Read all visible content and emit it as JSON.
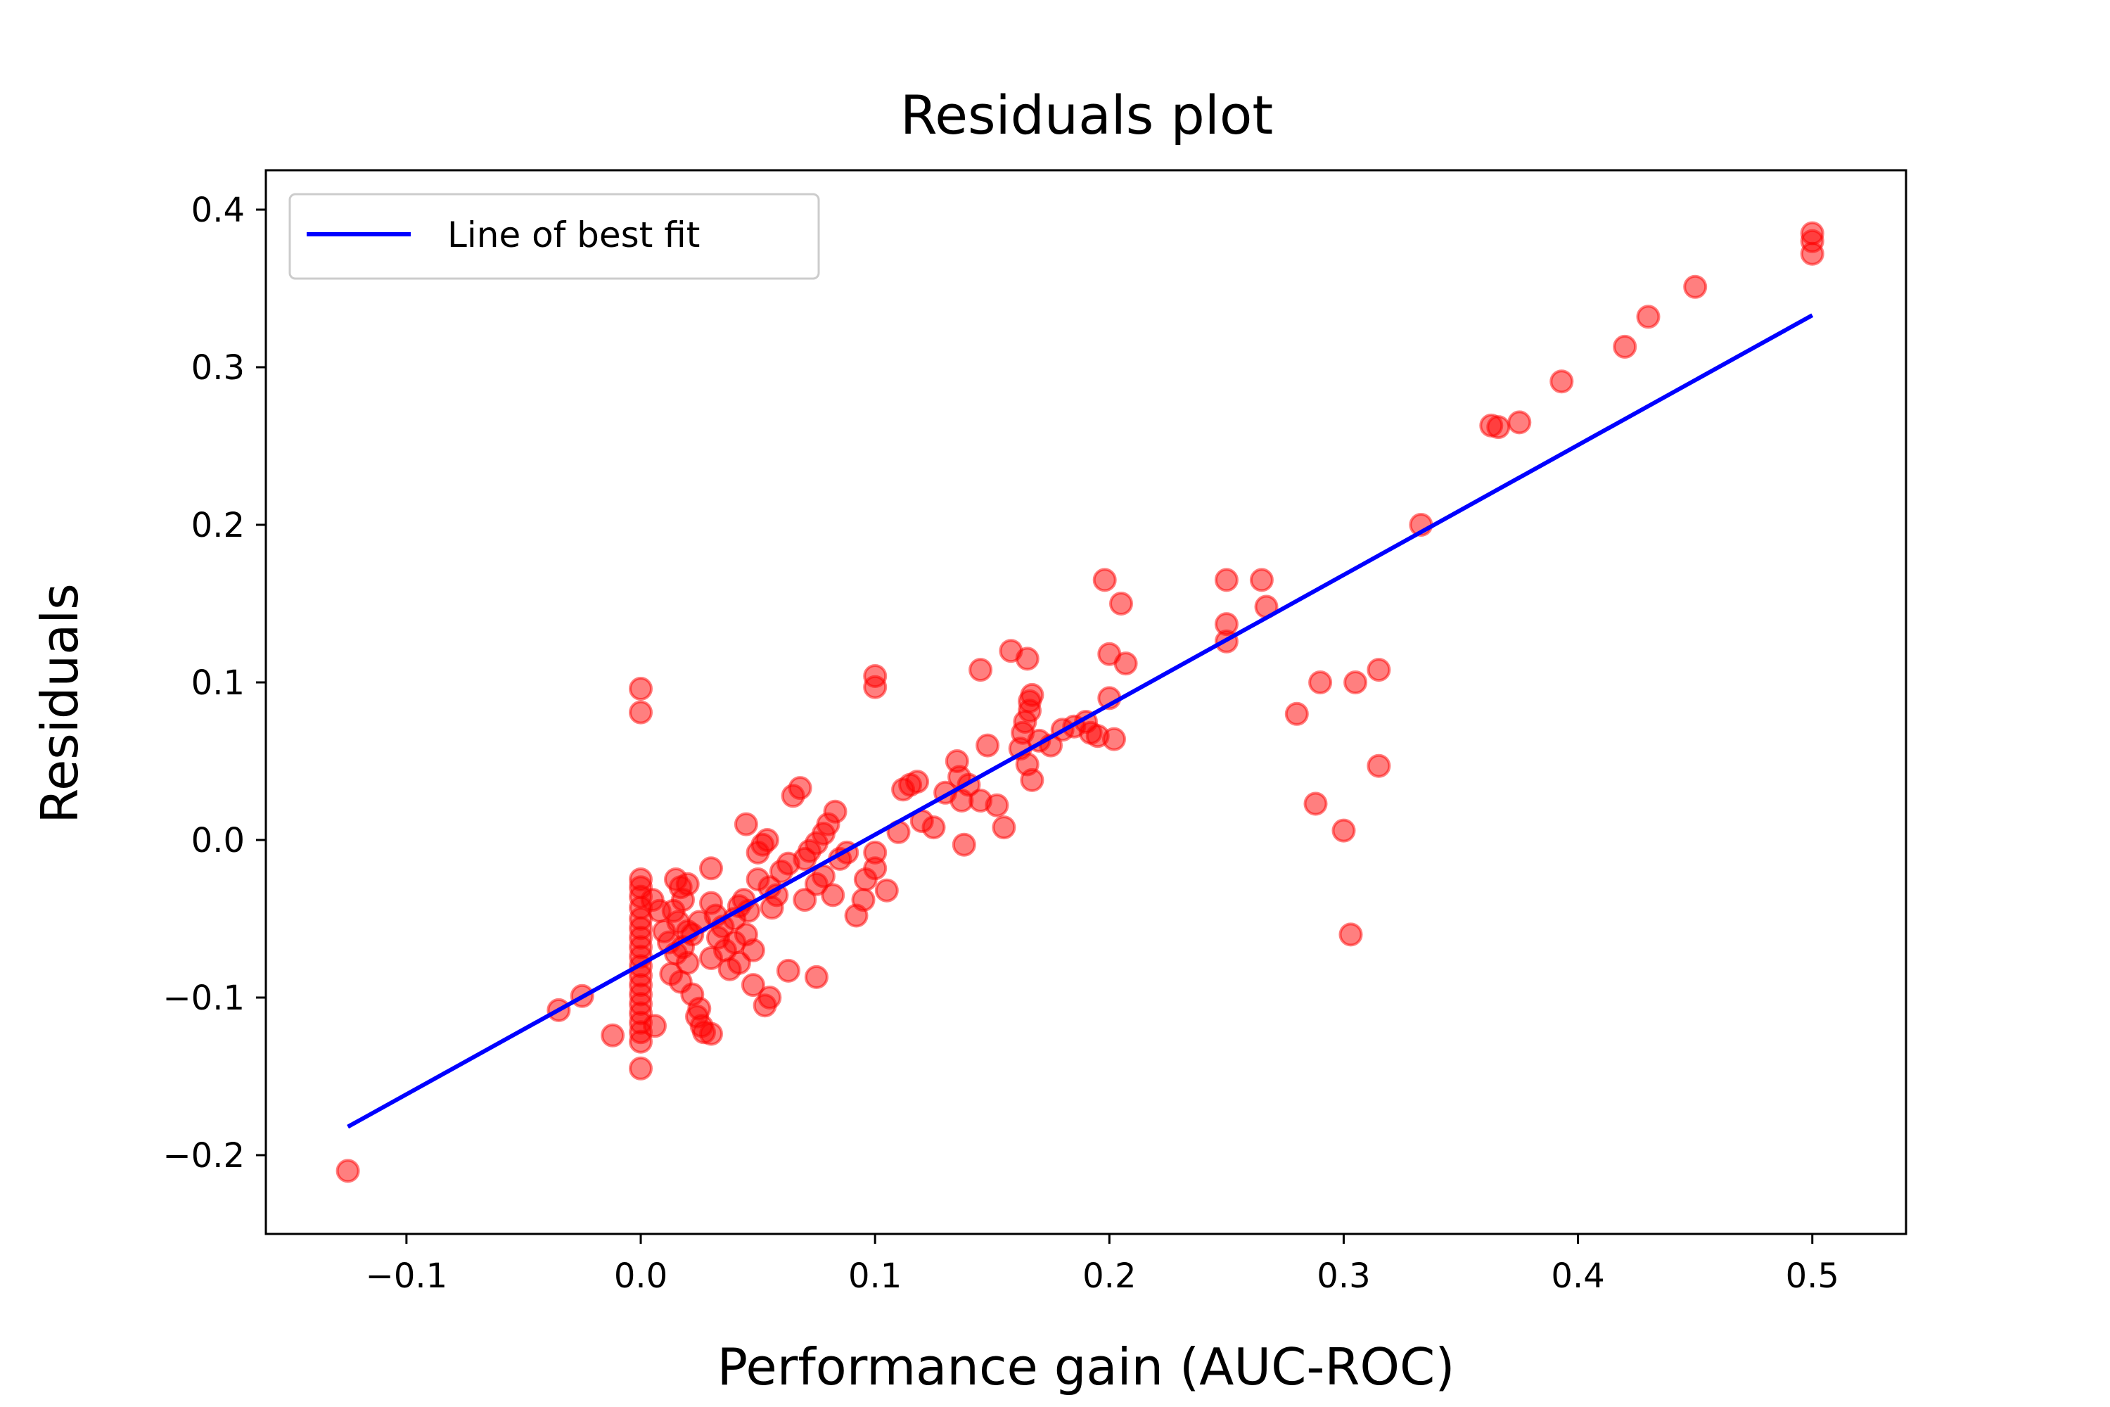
{
  "chart_data": {
    "type": "scatter",
    "title": "Residuals plot",
    "xlabel": "Performance gain (AUC-ROC)",
    "ylabel": "Residuals",
    "xlim": [
      -0.16,
      0.54
    ],
    "ylim": [
      -0.25,
      0.425
    ],
    "xticks": [
      -0.1,
      0.0,
      0.1,
      0.2,
      0.3,
      0.4,
      0.5
    ],
    "yticks": [
      -0.2,
      -0.1,
      0.0,
      0.1,
      0.2,
      0.3,
      0.4
    ],
    "xtick_labels": [
      "−0.1",
      "0.0",
      "0.1",
      "0.2",
      "0.3",
      "0.4",
      "0.5"
    ],
    "ytick_labels": [
      "−0.2",
      "−0.1",
      "0.0",
      "0.1",
      "0.2",
      "0.3",
      "0.4"
    ],
    "grid": false,
    "legend_position": "top-left",
    "colors": {
      "points": "#ff0000",
      "line": "#0000ff"
    },
    "series": [
      {
        "type": "scatter",
        "points": [
          [
            -0.125,
            -0.21
          ],
          [
            -0.035,
            -0.108
          ],
          [
            -0.025,
            -0.099
          ],
          [
            -0.012,
            -0.124
          ],
          [
            0.0,
            0.096
          ],
          [
            0.0,
            0.081
          ],
          [
            0.0,
            -0.025
          ],
          [
            0.0,
            -0.03
          ],
          [
            0.0,
            -0.036
          ],
          [
            0.0,
            -0.043
          ],
          [
            0.0,
            -0.05
          ],
          [
            0.0,
            -0.056
          ],
          [
            0.0,
            -0.062
          ],
          [
            0.0,
            -0.068
          ],
          [
            0.0,
            -0.074
          ],
          [
            0.0,
            -0.08
          ],
          [
            0.0,
            -0.086
          ],
          [
            0.0,
            -0.092
          ],
          [
            0.0,
            -0.098
          ],
          [
            0.0,
            -0.104
          ],
          [
            0.0,
            -0.11
          ],
          [
            0.0,
            -0.116
          ],
          [
            0.0,
            -0.122
          ],
          [
            0.0,
            -0.128
          ],
          [
            0.0,
            -0.145
          ],
          [
            0.005,
            -0.038
          ],
          [
            0.008,
            -0.045
          ],
          [
            0.01,
            -0.058
          ],
          [
            0.006,
            -0.118
          ],
          [
            0.015,
            -0.025
          ],
          [
            0.017,
            -0.03
          ],
          [
            0.02,
            -0.028
          ],
          [
            0.018,
            -0.038
          ],
          [
            0.014,
            -0.045
          ],
          [
            0.016,
            -0.052
          ],
          [
            0.02,
            -0.058
          ],
          [
            0.012,
            -0.065
          ],
          [
            0.018,
            -0.068
          ],
          [
            0.022,
            -0.06
          ],
          [
            0.025,
            -0.052
          ],
          [
            0.015,
            -0.072
          ],
          [
            0.02,
            -0.078
          ],
          [
            0.013,
            -0.085
          ],
          [
            0.017,
            -0.09
          ],
          [
            0.022,
            -0.098
          ],
          [
            0.025,
            -0.107
          ],
          [
            0.024,
            -0.112
          ],
          [
            0.026,
            -0.118
          ],
          [
            0.027,
            -0.122
          ],
          [
            0.03,
            -0.123
          ],
          [
            0.03,
            -0.04
          ],
          [
            0.032,
            -0.048
          ],
          [
            0.035,
            -0.055
          ],
          [
            0.033,
            -0.062
          ],
          [
            0.036,
            -0.07
          ],
          [
            0.03,
            -0.075
          ],
          [
            0.04,
            -0.05
          ],
          [
            0.042,
            -0.042
          ],
          [
            0.044,
            -0.038
          ],
          [
            0.046,
            -0.045
          ],
          [
            0.04,
            -0.065
          ],
          [
            0.045,
            -0.06
          ],
          [
            0.038,
            -0.082
          ],
          [
            0.042,
            -0.078
          ],
          [
            0.048,
            -0.07
          ],
          [
            0.03,
            -0.018
          ],
          [
            0.05,
            -0.008
          ],
          [
            0.052,
            -0.003
          ],
          [
            0.054,
            0.0
          ],
          [
            0.045,
            0.01
          ],
          [
            0.05,
            -0.025
          ],
          [
            0.055,
            -0.03
          ],
          [
            0.058,
            -0.035
          ],
          [
            0.056,
            -0.043
          ],
          [
            0.048,
            -0.092
          ],
          [
            0.055,
            -0.1
          ],
          [
            0.053,
            -0.105
          ],
          [
            0.063,
            -0.083
          ],
          [
            0.075,
            -0.087
          ],
          [
            0.06,
            -0.02
          ],
          [
            0.063,
            -0.015
          ],
          [
            0.065,
            0.028
          ],
          [
            0.068,
            0.033
          ],
          [
            0.07,
            -0.012
          ],
          [
            0.072,
            -0.007
          ],
          [
            0.075,
            -0.002
          ],
          [
            0.078,
            0.004
          ],
          [
            0.08,
            0.01
          ],
          [
            0.083,
            0.018
          ],
          [
            0.07,
            -0.038
          ],
          [
            0.075,
            -0.028
          ],
          [
            0.078,
            -0.023
          ],
          [
            0.082,
            -0.035
          ],
          [
            0.085,
            -0.012
          ],
          [
            0.088,
            -0.008
          ],
          [
            0.092,
            -0.048
          ],
          [
            0.095,
            -0.038
          ],
          [
            0.096,
            -0.025
          ],
          [
            0.1,
            0.104
          ],
          [
            0.1,
            0.097
          ],
          [
            0.1,
            -0.008
          ],
          [
            0.105,
            -0.032
          ],
          [
            0.1,
            -0.018
          ],
          [
            0.11,
            0.005
          ],
          [
            0.112,
            0.032
          ],
          [
            0.115,
            0.035
          ],
          [
            0.118,
            0.037
          ],
          [
            0.12,
            0.012
          ],
          [
            0.125,
            0.008
          ],
          [
            0.13,
            0.03
          ],
          [
            0.135,
            0.05
          ],
          [
            0.136,
            0.04
          ],
          [
            0.137,
            0.025
          ],
          [
            0.138,
            -0.003
          ],
          [
            0.14,
            0.035
          ],
          [
            0.145,
            0.108
          ],
          [
            0.145,
            0.025
          ],
          [
            0.148,
            0.06
          ],
          [
            0.152,
            0.022
          ],
          [
            0.155,
            0.008
          ],
          [
            0.158,
            0.12
          ],
          [
            0.165,
            0.115
          ],
          [
            0.162,
            0.058
          ],
          [
            0.165,
            0.048
          ],
          [
            0.167,
            0.038
          ],
          [
            0.163,
            0.068
          ],
          [
            0.164,
            0.075
          ],
          [
            0.166,
            0.082
          ],
          [
            0.166,
            0.088
          ],
          [
            0.167,
            0.092
          ],
          [
            0.17,
            0.063
          ],
          [
            0.175,
            0.06
          ],
          [
            0.18,
            0.07
          ],
          [
            0.185,
            0.072
          ],
          [
            0.19,
            0.075
          ],
          [
            0.192,
            0.068
          ],
          [
            0.195,
            0.066
          ],
          [
            0.198,
            0.165
          ],
          [
            0.2,
            0.118
          ],
          [
            0.2,
            0.09
          ],
          [
            0.202,
            0.064
          ],
          [
            0.205,
            0.15
          ],
          [
            0.207,
            0.112
          ],
          [
            0.25,
            0.165
          ],
          [
            0.25,
            0.137
          ],
          [
            0.25,
            0.126
          ],
          [
            0.265,
            0.165
          ],
          [
            0.267,
            0.148
          ],
          [
            0.28,
            0.08
          ],
          [
            0.288,
            0.023
          ],
          [
            0.29,
            0.1
          ],
          [
            0.3,
            0.006
          ],
          [
            0.303,
            -0.06
          ],
          [
            0.305,
            0.1
          ],
          [
            0.315,
            0.108
          ],
          [
            0.315,
            0.047
          ],
          [
            0.333,
            0.2
          ],
          [
            0.363,
            0.263
          ],
          [
            0.366,
            0.262
          ],
          [
            0.375,
            0.265
          ],
          [
            0.393,
            0.291
          ],
          [
            0.42,
            0.313
          ],
          [
            0.43,
            0.332
          ],
          [
            0.45,
            0.351
          ],
          [
            0.5,
            0.385
          ],
          [
            0.5,
            0.38
          ],
          [
            0.5,
            0.372
          ]
        ]
      },
      {
        "name": "Line of best fit",
        "type": "line",
        "x": [
          -0.125,
          0.5
        ],
        "y": [
          -0.182,
          0.333
        ]
      }
    ]
  }
}
